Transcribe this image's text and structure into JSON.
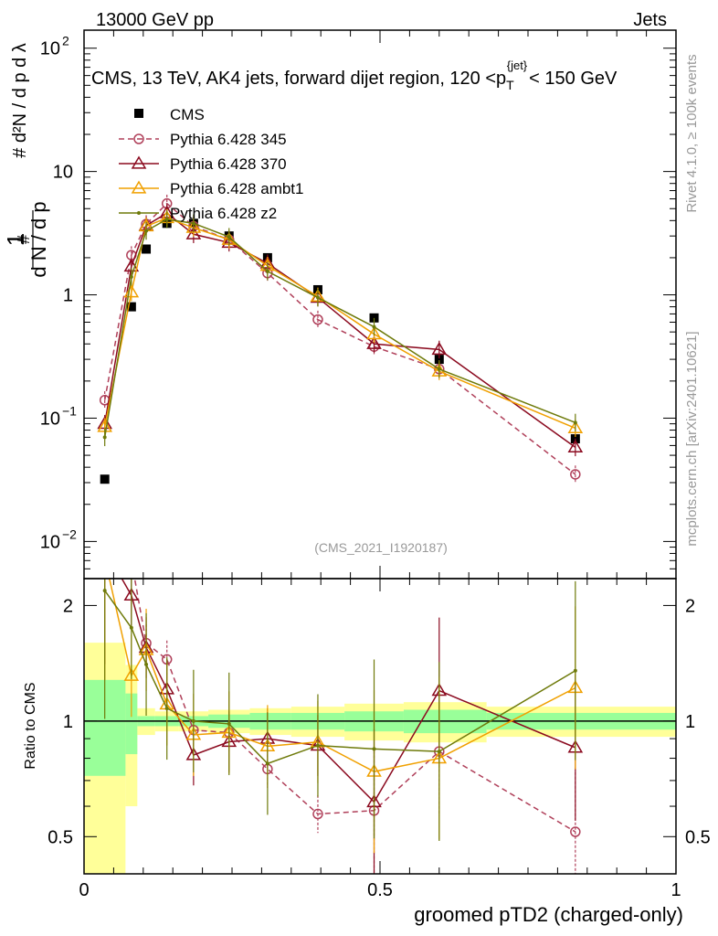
{
  "header": {
    "left_label": "13000 GeV pp",
    "right_label": "Jets"
  },
  "chart_data": {
    "type": "line",
    "title_prefix": "CMS, 13 TeV, AK4 jets, forward dijet region, 120 <p",
    "title_sub": "T",
    "title_sup": "{jet}",
    "title_suffix": "< 150 GeV",
    "analysis_id": "(CMS_2021_I1920187)",
    "xlabel": "groomed pTD2 (charged-only)",
    "ylabel_ratio": "Ratio to CMS",
    "side_label_top": "Rivet 4.1.0, ≥ 100k events",
    "side_label_bottom": "mcplots.cern.ch [arXiv:2401.10621]",
    "xlim": [
      0,
      1
    ],
    "ylim_main": [
      0.005,
      140
    ],
    "ylim_ratio": [
      0.4,
      2.35
    ],
    "x_ticks": [
      "0",
      "0.5",
      "1"
    ],
    "y_ticks_main": [
      {
        "base": "10",
        "exp": "2",
        "value": 100
      },
      {
        "base": "10",
        "exp": "",
        "value": 10
      },
      {
        "base": "1",
        "exp": "",
        "value": 1
      },
      {
        "base": "10",
        "exp": "−1",
        "value": 0.1
      },
      {
        "base": "10",
        "exp": "−2",
        "value": 0.01
      }
    ],
    "y_ticks_ratio": [
      "0.5",
      "1",
      "2"
    ],
    "bin_edges": [
      0,
      0.07,
      0.09,
      0.12,
      0.16,
      0.21,
      0.28,
      0.35,
      0.44,
      0.54,
      0.68,
      1.0
    ],
    "x": [
      0.035,
      0.08,
      0.105,
      0.14,
      0.185,
      0.245,
      0.31,
      0.395,
      0.49,
      0.6,
      0.83
    ],
    "cms": {
      "name": "CMS",
      "values": [
        0.032,
        0.8,
        2.35,
        3.8,
        3.8,
        3.0,
        2.0,
        1.1,
        0.65,
        0.3,
        0.068
      ],
      "band_stat": [
        0.28,
        0.18,
        0.03,
        0.03,
        0.03,
        0.04,
        0.05,
        0.05,
        0.06,
        0.07,
        0.05
      ],
      "band_total": [
        0.6,
        0.4,
        0.08,
        0.06,
        0.06,
        0.07,
        0.08,
        0.09,
        0.11,
        0.12,
        0.09
      ]
    },
    "series": [
      {
        "name": "Pythia 6.428 345",
        "color": "#b0405a",
        "marker": "circle",
        "dashed": true,
        "values": [
          0.14,
          2.1,
          3.75,
          5.5,
          3.6,
          2.8,
          1.5,
          0.63,
          0.38,
          0.25,
          0.035
        ]
      },
      {
        "name": "Pythia 6.428 370",
        "color": "#8b0a1f",
        "marker": "triangle",
        "dashed": false,
        "values": [
          0.09,
          1.7,
          3.65,
          4.6,
          3.1,
          2.65,
          1.8,
          0.95,
          0.4,
          0.36,
          0.058
        ]
      },
      {
        "name": "Pythia 6.428 ambt1",
        "color": "#f0a000",
        "marker": "triangle",
        "dashed": false,
        "values": [
          0.085,
          1.05,
          3.6,
          4.2,
          3.5,
          2.8,
          1.72,
          0.97,
          0.48,
          0.24,
          0.083
        ]
      },
      {
        "name": "Pythia 6.428 z2",
        "color": "#6e7a0a",
        "marker": "dot",
        "dashed": false,
        "values": [
          0.07,
          1.4,
          3.3,
          4.1,
          3.8,
          2.95,
          1.55,
          0.95,
          0.55,
          0.25,
          0.092
        ]
      }
    ]
  }
}
